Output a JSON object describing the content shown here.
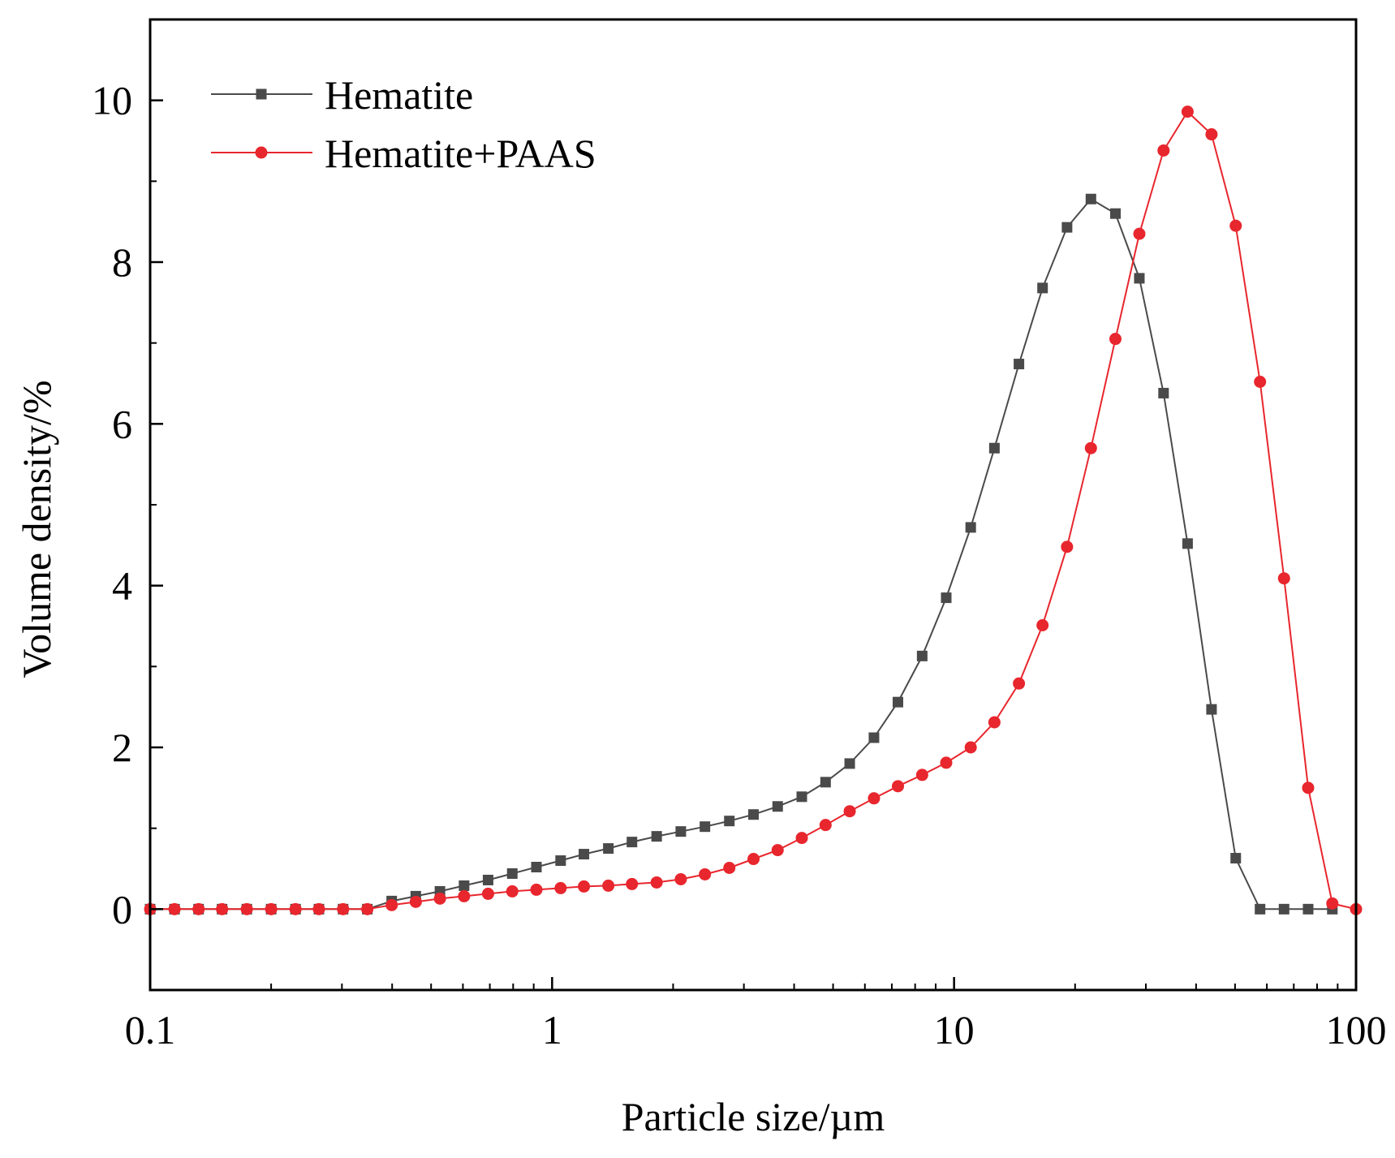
{
  "chart_data": {
    "type": "line",
    "title": "",
    "xlabel": "Particle size/µm",
    "ylabel": "Volume density/%",
    "xscale": "log",
    "xlim": [
      0.1,
      100
    ],
    "ylim": [
      -1,
      11
    ],
    "xticks": [
      0.1,
      1,
      10,
      100
    ],
    "xtick_labels": [
      "0.1",
      "1",
      "10",
      "100"
    ],
    "yticks": [
      0,
      2,
      4,
      6,
      8,
      10
    ],
    "ytick_labels": [
      "0",
      "2",
      "4",
      "6",
      "8",
      "10"
    ],
    "grid": false,
    "legend_position": "top-left",
    "series": [
      {
        "name": "Hematite",
        "color": "#4a4a4a",
        "marker": "square",
        "points": [
          [
            0.1,
            0
          ],
          [
            0.115,
            0
          ],
          [
            0.132,
            0
          ],
          [
            0.151,
            0
          ],
          [
            0.174,
            0
          ],
          [
            0.2,
            0
          ],
          [
            0.23,
            0
          ],
          [
            0.263,
            0
          ],
          [
            0.302,
            0
          ],
          [
            0.347,
            0
          ],
          [
            0.399,
            0.1
          ],
          [
            0.458,
            0.16
          ],
          [
            0.526,
            0.22
          ],
          [
            0.604,
            0.29
          ],
          [
            0.693,
            0.36
          ],
          [
            0.796,
            0.44
          ],
          [
            0.914,
            0.52
          ],
          [
            1.05,
            0.6
          ],
          [
            1.2,
            0.68
          ],
          [
            1.38,
            0.75
          ],
          [
            1.58,
            0.83
          ],
          [
            1.82,
            0.9
          ],
          [
            2.09,
            0.96
          ],
          [
            2.4,
            1.02
          ],
          [
            2.76,
            1.09
          ],
          [
            3.17,
            1.17
          ],
          [
            3.64,
            1.27
          ],
          [
            4.18,
            1.39
          ],
          [
            4.79,
            1.57
          ],
          [
            5.5,
            1.8
          ],
          [
            6.32,
            2.12
          ],
          [
            7.25,
            2.56
          ],
          [
            8.33,
            3.13
          ],
          [
            9.56,
            3.85
          ],
          [
            11.0,
            4.72
          ],
          [
            12.6,
            5.7
          ],
          [
            14.5,
            6.74
          ],
          [
            16.6,
            7.68
          ],
          [
            19.1,
            8.43
          ],
          [
            21.9,
            8.78
          ],
          [
            25.2,
            8.6
          ],
          [
            28.9,
            7.8
          ],
          [
            33.2,
            6.38
          ],
          [
            38.1,
            4.52
          ],
          [
            43.7,
            2.47
          ],
          [
            50.2,
            0.63
          ],
          [
            57.7,
            0
          ],
          [
            66.2,
            0
          ],
          [
            76.0,
            0
          ],
          [
            87.3,
            0
          ]
        ]
      },
      {
        "name": "Hematite+PAAS",
        "color": "#e8262d",
        "marker": "circle",
        "points": [
          [
            0.1,
            0
          ],
          [
            0.115,
            0
          ],
          [
            0.132,
            0
          ],
          [
            0.151,
            0
          ],
          [
            0.174,
            0
          ],
          [
            0.2,
            0
          ],
          [
            0.23,
            0
          ],
          [
            0.263,
            0
          ],
          [
            0.302,
            0
          ],
          [
            0.347,
            0
          ],
          [
            0.399,
            0.05
          ],
          [
            0.458,
            0.09
          ],
          [
            0.526,
            0.13
          ],
          [
            0.604,
            0.16
          ],
          [
            0.693,
            0.19
          ],
          [
            0.796,
            0.22
          ],
          [
            0.914,
            0.24
          ],
          [
            1.05,
            0.26
          ],
          [
            1.2,
            0.28
          ],
          [
            1.38,
            0.29
          ],
          [
            1.58,
            0.31
          ],
          [
            1.82,
            0.33
          ],
          [
            2.09,
            0.37
          ],
          [
            2.4,
            0.43
          ],
          [
            2.76,
            0.51
          ],
          [
            3.17,
            0.62
          ],
          [
            3.64,
            0.73
          ],
          [
            4.18,
            0.88
          ],
          [
            4.79,
            1.04
          ],
          [
            5.5,
            1.21
          ],
          [
            6.32,
            1.37
          ],
          [
            7.25,
            1.52
          ],
          [
            8.33,
            1.66
          ],
          [
            9.56,
            1.81
          ],
          [
            11.0,
            2.0
          ],
          [
            12.6,
            2.31
          ],
          [
            14.5,
            2.79
          ],
          [
            16.6,
            3.51
          ],
          [
            19.1,
            4.48
          ],
          [
            21.9,
            5.7
          ],
          [
            25.2,
            7.05
          ],
          [
            28.9,
            8.35
          ],
          [
            33.2,
            9.38
          ],
          [
            38.1,
            9.86
          ],
          [
            43.7,
            9.58
          ],
          [
            50.2,
            8.45
          ],
          [
            57.7,
            6.52
          ],
          [
            66.2,
            4.09
          ],
          [
            76.0,
            1.5
          ],
          [
            87.3,
            0.07
          ],
          [
            100.0,
            0
          ]
        ]
      }
    ]
  }
}
